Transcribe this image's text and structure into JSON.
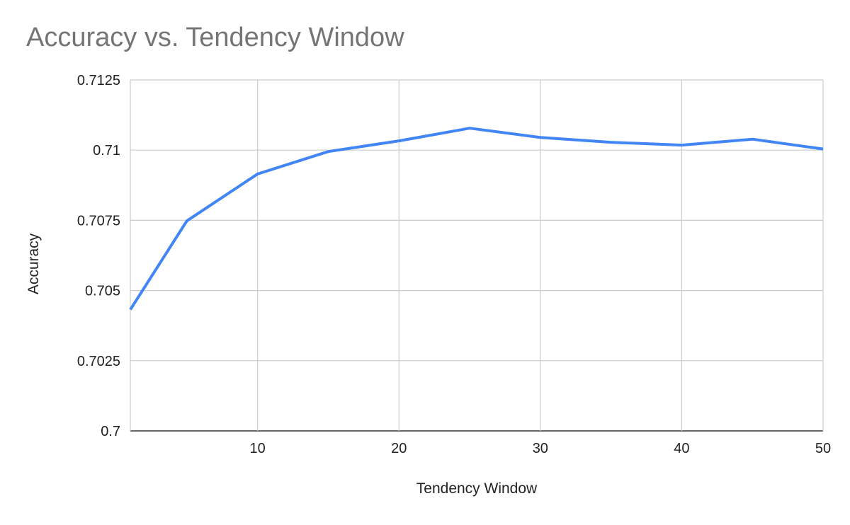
{
  "chart_data": {
    "type": "line",
    "title": "Accuracy vs. Tendency Window",
    "xlabel": "Tendency Window",
    "ylabel": "Accuracy",
    "xlim": [
      1,
      50
    ],
    "ylim": [
      0.7,
      0.7125
    ],
    "x_ticks": [
      10,
      20,
      30,
      40,
      50
    ],
    "x_tick_labels": [
      "10",
      "20",
      "30",
      "40",
      "50"
    ],
    "y_ticks": [
      0.7,
      0.7025,
      0.705,
      0.7075,
      0.71,
      0.7125
    ],
    "y_tick_labels": [
      "0.7",
      "0.7025",
      "0.705",
      "0.7075",
      "0.71",
      "0.7125"
    ],
    "grid": true,
    "legend": "none",
    "line_color": "#4285f4",
    "series": [
      {
        "x": [
          1,
          5,
          10,
          15,
          20,
          25,
          30,
          35,
          40,
          45,
          50
        ],
        "values": [
          0.70432,
          0.70748,
          0.70915,
          0.70995,
          0.71033,
          0.71078,
          0.71045,
          0.71028,
          0.71018,
          0.71039,
          0.71004
        ]
      }
    ]
  }
}
